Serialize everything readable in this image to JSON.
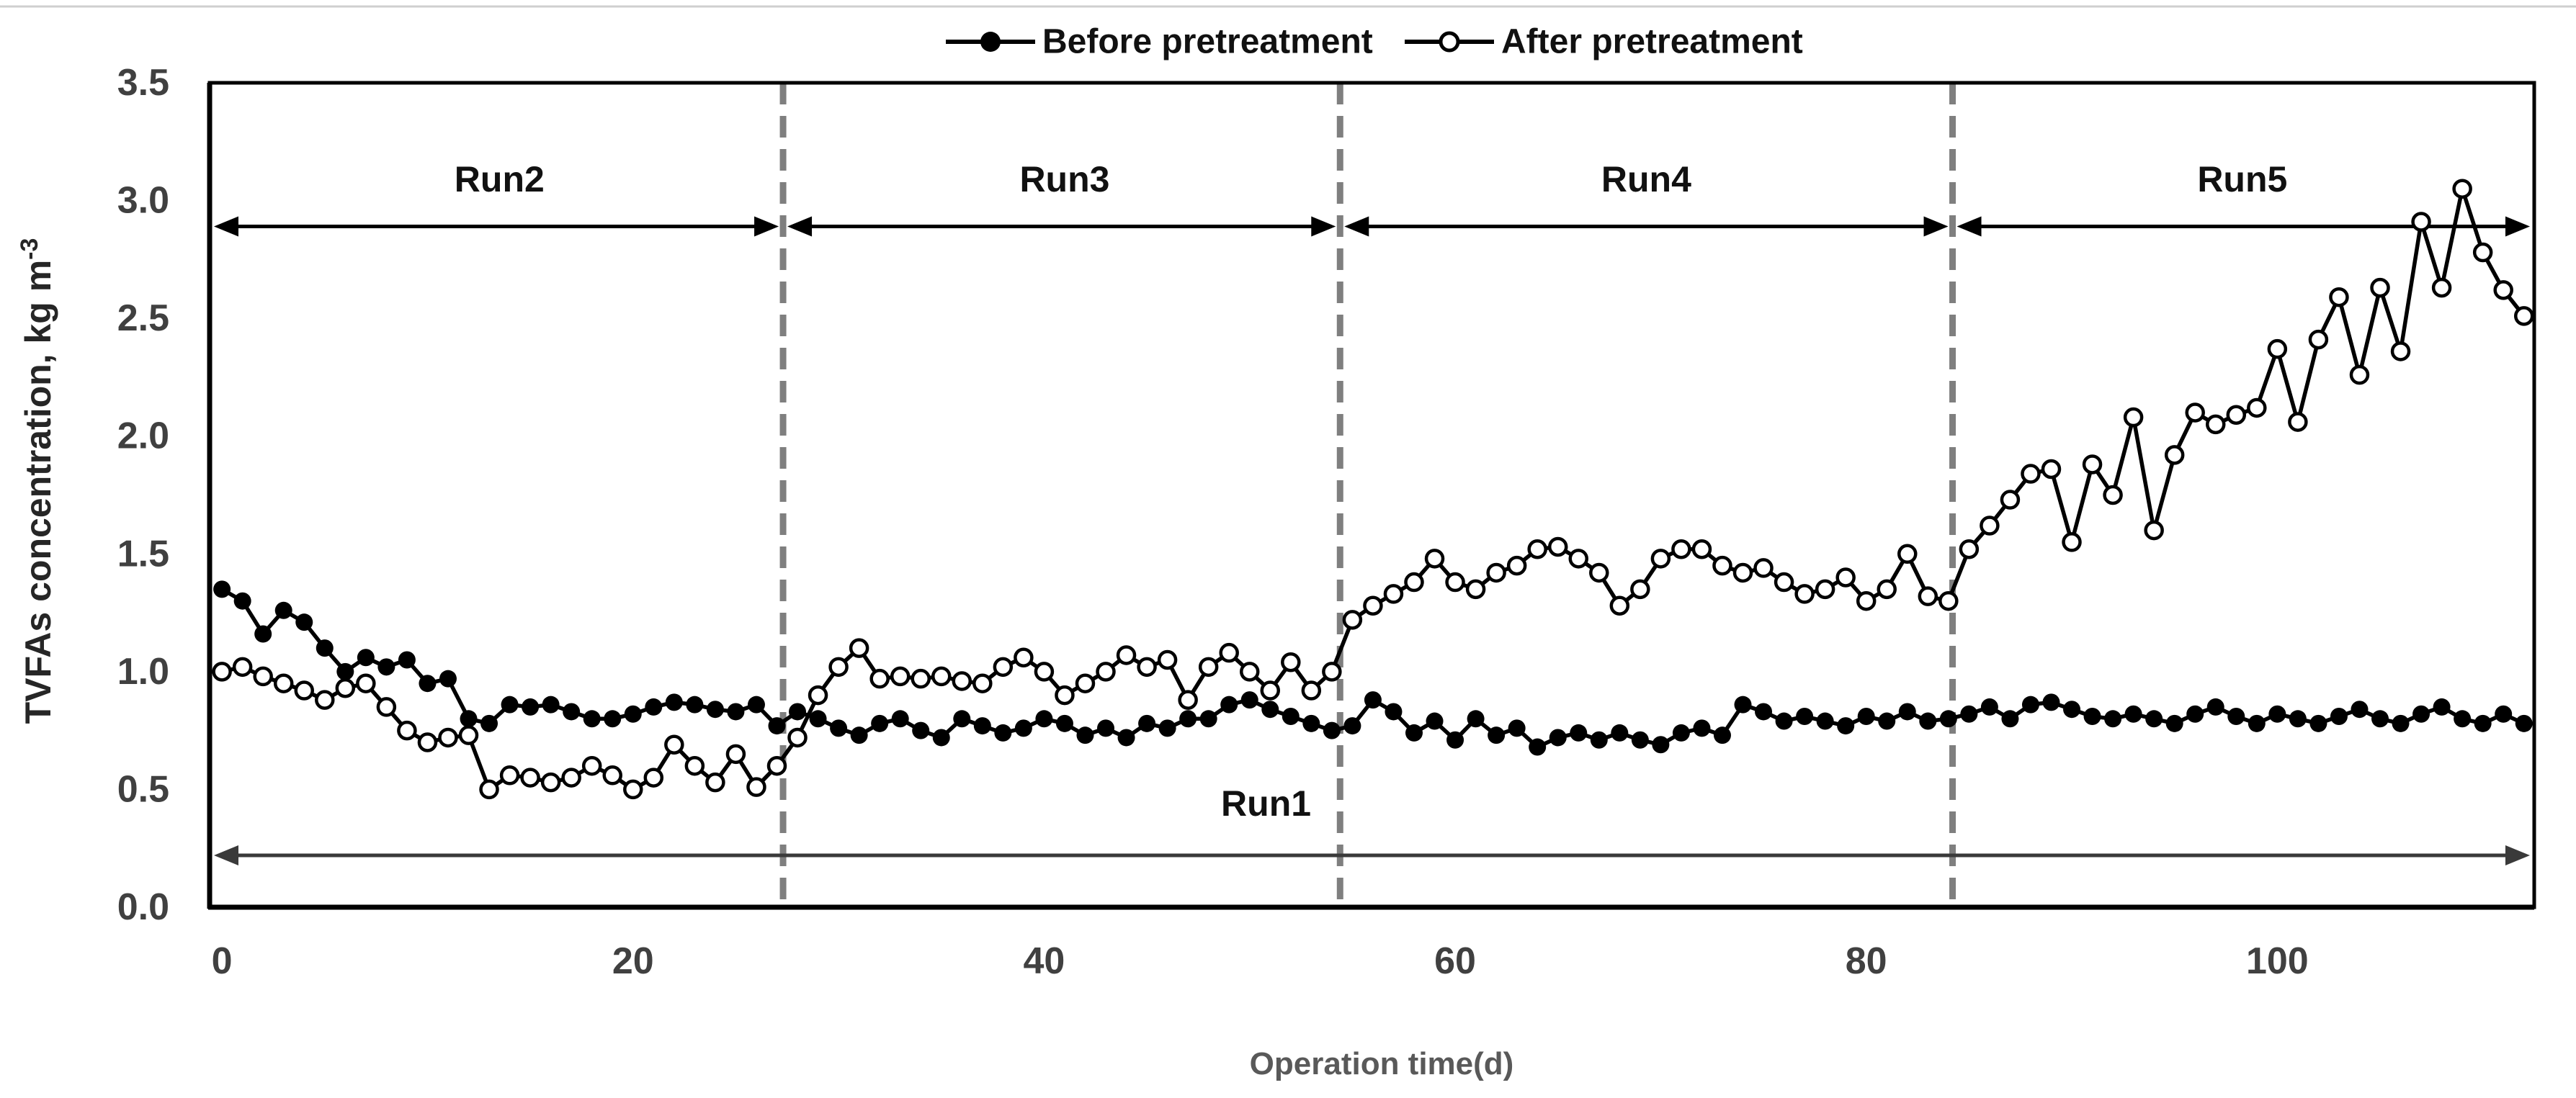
{
  "figure": {
    "background": "#ffffff",
    "top_rule_color": "#cfcfcf"
  },
  "legend": {
    "before_label": "Before pretreatment",
    "after_label": "After pretreatment"
  },
  "chart_data": {
    "type": "line",
    "title": "",
    "xlabel": "Operation time(d)",
    "ylabel_main": "TVFAs concentration, kg m",
    "ylabel_sup": "-3",
    "xlim": [
      -0.6,
      112.5
    ],
    "ylim": [
      0,
      3.5
    ],
    "grid": "off",
    "legend_position": "top-center",
    "x_ticks": [
      {
        "v": 0,
        "label": "0"
      },
      {
        "v": 20,
        "label": "20"
      },
      {
        "v": 40,
        "label": "40"
      },
      {
        "v": 60,
        "label": "60"
      },
      {
        "v": 80,
        "label": "80"
      },
      {
        "v": 100,
        "label": "100"
      }
    ],
    "y_ticks": [
      {
        "v": 0.0,
        "label": "0.0"
      },
      {
        "v": 0.5,
        "label": "0.5"
      },
      {
        "v": 1.0,
        "label": "1.0"
      },
      {
        "v": 1.5,
        "label": "1.5"
      },
      {
        "v": 2.0,
        "label": "2.0"
      },
      {
        "v": 2.5,
        "label": "2.5"
      },
      {
        "v": 3.0,
        "label": "3.0"
      },
      {
        "v": 3.5,
        "label": "3.5"
      }
    ],
    "dividers_x": [
      27.3,
      54.4,
      84.2
    ],
    "divider_color": "#7f7f7f",
    "annotations": [
      {
        "label": "Run2",
        "from": -0.6,
        "to": 27.3,
        "arrow_y": 2.89,
        "label_x": 13.5,
        "label_y": 3.09,
        "color": "#000000"
      },
      {
        "label": "Run3",
        "from": 27.3,
        "to": 54.4,
        "arrow_y": 2.89,
        "label_x": 41.0,
        "label_y": 3.09,
        "color": "#000000"
      },
      {
        "label": "Run4",
        "from": 54.4,
        "to": 84.2,
        "arrow_y": 2.89,
        "label_x": 69.3,
        "label_y": 3.09,
        "color": "#000000"
      },
      {
        "label": "Run5",
        "from": 84.2,
        "to": 112.5,
        "arrow_y": 2.89,
        "label_x": 98.3,
        "label_y": 3.09,
        "color": "#000000"
      },
      {
        "label": "Run1",
        "from": -0.6,
        "to": 112.5,
        "arrow_y": 0.22,
        "label_x": 50.8,
        "label_y": 0.44,
        "color": "#3a3a3a"
      }
    ],
    "series": [
      {
        "name": "Before pretreatment",
        "marker": "filled-circle",
        "color": "#000000",
        "x_start": 0,
        "x_step": 1,
        "values": [
          1.35,
          1.3,
          1.16,
          1.26,
          1.21,
          1.1,
          1.0,
          1.06,
          1.02,
          1.05,
          0.95,
          0.97,
          0.8,
          0.78,
          0.86,
          0.85,
          0.86,
          0.83,
          0.8,
          0.8,
          0.82,
          0.85,
          0.87,
          0.86,
          0.84,
          0.83,
          0.86,
          0.77,
          0.83,
          0.8,
          0.76,
          0.73,
          0.78,
          0.8,
          0.75,
          0.72,
          0.8,
          0.77,
          0.74,
          0.76,
          0.8,
          0.78,
          0.73,
          0.76,
          0.72,
          0.78,
          0.76,
          0.8,
          0.8,
          0.86,
          0.88,
          0.84,
          0.81,
          0.78,
          0.75,
          0.77,
          0.88,
          0.83,
          0.74,
          0.79,
          0.71,
          0.8,
          0.73,
          0.76,
          0.68,
          0.72,
          0.74,
          0.71,
          0.74,
          0.71,
          0.69,
          0.74,
          0.76,
          0.73,
          0.86,
          0.83,
          0.79,
          0.81,
          0.79,
          0.77,
          0.81,
          0.79,
          0.83,
          0.79,
          0.8,
          0.82,
          0.85,
          0.8,
          0.86,
          0.87,
          0.84,
          0.81,
          0.8,
          0.82,
          0.8,
          0.78,
          0.82,
          0.85,
          0.81,
          0.78,
          0.82,
          0.8,
          0.78,
          0.81,
          0.84,
          0.8,
          0.78,
          0.82,
          0.85,
          0.8,
          0.78,
          0.82,
          0.78
        ]
      },
      {
        "name": "After pretreatment",
        "marker": "open-circle",
        "color": "#000000",
        "x_start": 0,
        "x_step": 1,
        "values": [
          1.0,
          1.02,
          0.98,
          0.95,
          0.92,
          0.88,
          0.93,
          0.95,
          0.85,
          0.75,
          0.7,
          0.72,
          0.73,
          0.5,
          0.56,
          0.55,
          0.53,
          0.55,
          0.6,
          0.56,
          0.5,
          0.55,
          0.69,
          0.6,
          0.53,
          0.65,
          0.51,
          0.6,
          0.72,
          0.9,
          1.02,
          1.1,
          0.97,
          0.98,
          0.97,
          0.98,
          0.96,
          0.95,
          1.02,
          1.06,
          1.0,
          0.9,
          0.95,
          1.0,
          1.07,
          1.02,
          1.05,
          0.88,
          1.02,
          1.08,
          1.0,
          0.92,
          1.04,
          0.92,
          1.0,
          1.22,
          1.28,
          1.33,
          1.38,
          1.48,
          1.38,
          1.35,
          1.42,
          1.45,
          1.52,
          1.53,
          1.48,
          1.42,
          1.28,
          1.35,
          1.48,
          1.52,
          1.52,
          1.45,
          1.42,
          1.44,
          1.38,
          1.33,
          1.35,
          1.4,
          1.3,
          1.35,
          1.5,
          1.32,
          1.3,
          1.52,
          1.62,
          1.73,
          1.84,
          1.86,
          1.55,
          1.88,
          1.75,
          2.08,
          1.6,
          1.92,
          2.1,
          2.05,
          2.09,
          2.12,
          2.37,
          2.06,
          2.41,
          2.59,
          2.26,
          2.63,
          2.36,
          2.91,
          2.63,
          3.05,
          2.78,
          2.62,
          2.51
        ]
      }
    ]
  }
}
